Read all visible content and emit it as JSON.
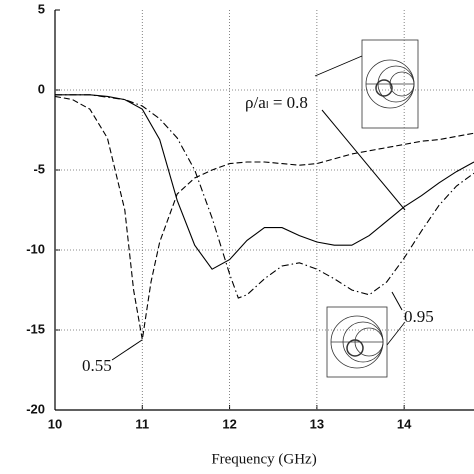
{
  "chart_data": {
    "type": "line",
    "x_label": "Frequency (GHz)",
    "xlim": [
      10,
      14.8
    ],
    "ylim": [
      -20,
      5
    ],
    "xticks": [
      10,
      11,
      12,
      13,
      14
    ],
    "yticks": [
      5,
      0,
      -5,
      -10,
      -15,
      -20
    ],
    "grid": true,
    "series": [
      {
        "color": "#000000",
        "line_style": "solid",
        "x": [
          10,
          10.2,
          10.4,
          10.6,
          10.8,
          11,
          11.2,
          11.4,
          11.6,
          11.8,
          12,
          12.2,
          12.4,
          12.6,
          12.8,
          13,
          13.2,
          13.4,
          13.6,
          13.8,
          14,
          14.2,
          14.4,
          14.6,
          14.8
        ],
        "values": [
          -0.3,
          -0.3,
          -0.3,
          -0.4,
          -0.6,
          -1.2,
          -3.1,
          -6.9,
          -9.7,
          -11.2,
          -10.6,
          -9.4,
          -8.6,
          -8.6,
          -9.1,
          -9.5,
          -9.7,
          -9.7,
          -9.1,
          -8.2,
          -7.3,
          -6.6,
          -5.8,
          -5.1,
          -4.5
        ]
      },
      {
        "color": "#000000",
        "line_style": "dashed",
        "x": [
          10,
          10.2,
          10.4,
          10.6,
          10.8,
          10.9,
          11,
          11.1,
          11.2,
          11.4,
          11.6,
          11.8,
          12,
          12.2,
          12.4,
          12.6,
          12.8,
          13,
          13.2,
          13.4,
          13.6,
          13.8,
          14,
          14.2,
          14.4,
          14.6,
          14.8
        ],
        "values": [
          -0.4,
          -0.6,
          -1.2,
          -3,
          -7.5,
          -12.5,
          -15.6,
          -12,
          -9.5,
          -6.5,
          -5.5,
          -5,
          -4.6,
          -4.5,
          -4.5,
          -4.6,
          -4.7,
          -4.6,
          -4.3,
          -4,
          -3.8,
          -3.6,
          -3.4,
          -3.2,
          -3.1,
          -2.9,
          -2.7
        ]
      },
      {
        "color": "#000000",
        "line_style": "dashdot",
        "x": [
          10,
          10.4,
          10.8,
          11,
          11.2,
          11.4,
          11.6,
          11.8,
          12,
          12.1,
          12.2,
          12.4,
          12.6,
          12.8,
          13,
          13.2,
          13.4,
          13.6,
          13.8,
          14,
          14.2,
          14.4,
          14.6,
          14.8
        ],
        "values": [
          -0.3,
          -0.3,
          -0.6,
          -1,
          -1.8,
          -3,
          -5,
          -8,
          -11.5,
          -13,
          -12.8,
          -11.8,
          -11,
          -10.8,
          -11.2,
          -11.8,
          -12.5,
          -12.8,
          -12,
          -10.5,
          -8.8,
          -7.2,
          -6,
          -5.2
        ]
      }
    ],
    "annotations": [
      "ρ/aₗ = 0.8",
      "0.55",
      "0.95"
    ]
  }
}
